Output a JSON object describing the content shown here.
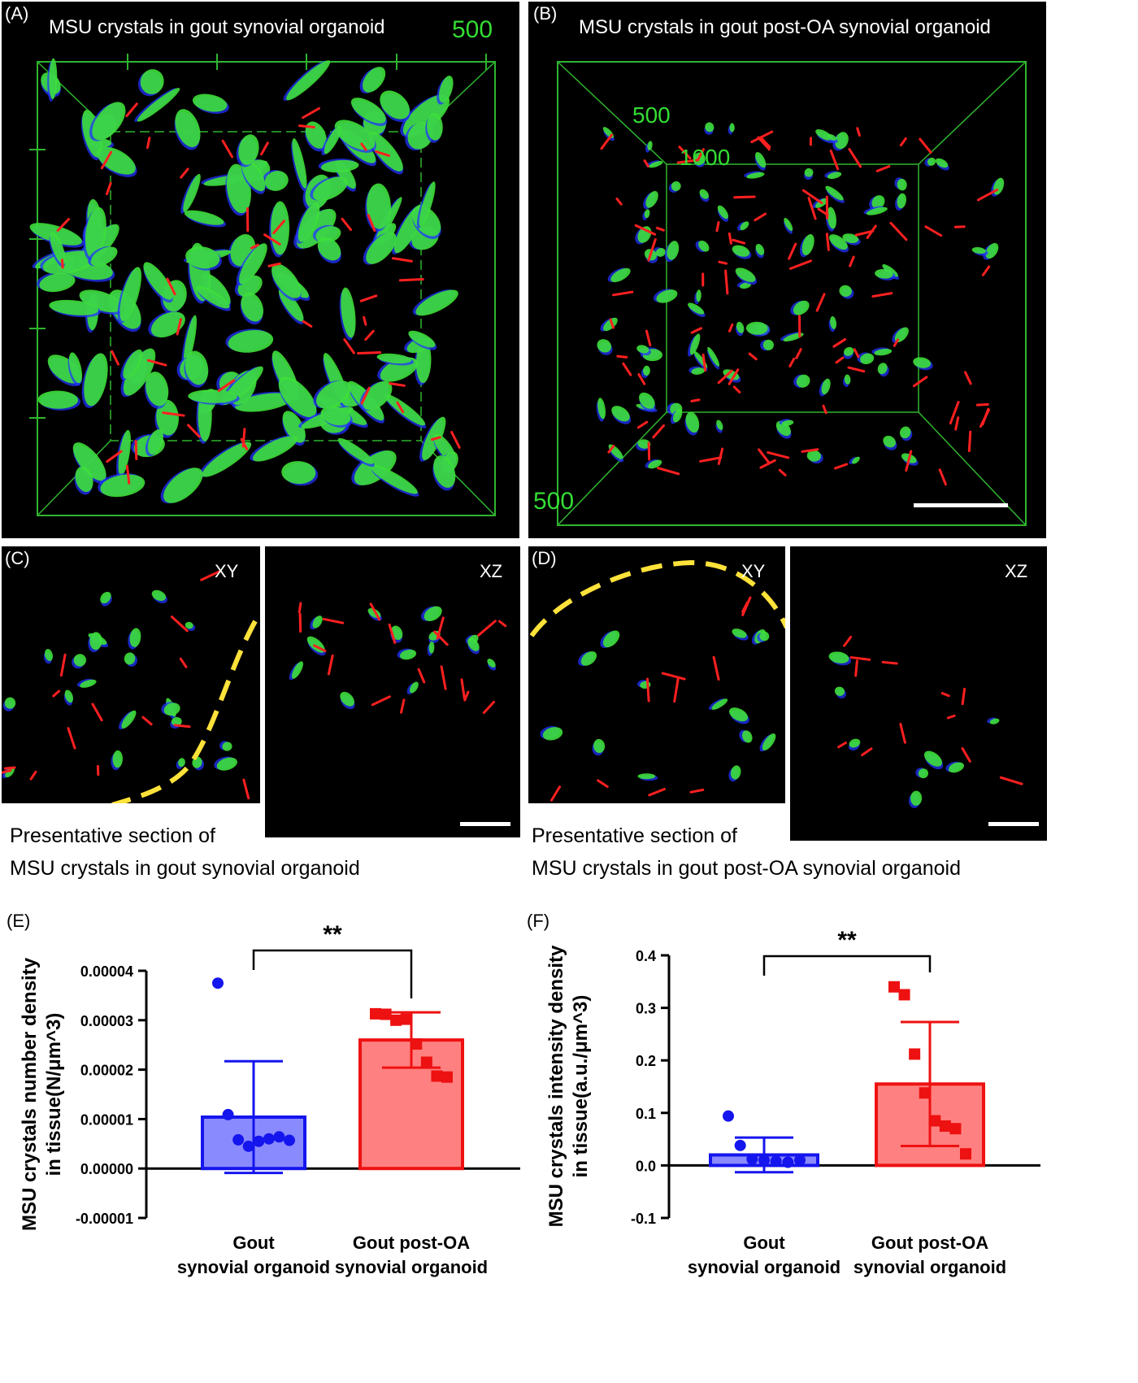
{
  "panels": {
    "A": {
      "letter": "(A)",
      "title": "MSU crystals in gout synovial organoid",
      "axis_label": "500"
    },
    "B": {
      "letter": "(B)",
      "title": "MSU crystals in gout post-OA synovial organoid",
      "axis_labels": [
        "500",
        "1000",
        "500"
      ]
    },
    "C": {
      "letter": "(C)",
      "plane_left": "XY",
      "plane_right": "XZ",
      "caption_line1": "Presentative section of",
      "caption_line2": "MSU crystals in gout synovial organoid"
    },
    "D": {
      "letter": "(D)",
      "plane_left": "XY",
      "plane_right": "XZ",
      "caption_line1": "Presentative section of",
      "caption_line2": "MSU crystals in gout post-OA synovial organoid"
    },
    "E": {
      "letter": "(E)"
    },
    "F": {
      "letter": "(F)"
    }
  },
  "chart_data": [
    {
      "type": "bar",
      "panel": "E",
      "ylabel_line1": "MSU crystals number density",
      "ylabel_line2": "in tissue(N/μm^3)",
      "categories_line1": [
        "Gout",
        "Gout post-OA"
      ],
      "categories_line2": [
        "synovial organoid",
        "synovial organoid"
      ],
      "ylim": [
        -1e-05,
        4e-05
      ],
      "yticks": [
        -1e-05,
        0,
        1e-05,
        2e-05,
        3e-05,
        4e-05
      ],
      "ytick_labels": [
        "-0.00001",
        "0.00000",
        "0.00001",
        "0.00002",
        "0.00003",
        "0.00004"
      ],
      "series": [
        {
          "mean": 1.04e-05,
          "sd": 1.13e-05,
          "points": [
            3.75e-05,
            1.09e-05,
            5.8e-06,
            4.5e-06,
            5.5e-06,
            6e-06,
            6.4e-06,
            5.7e-06
          ],
          "fill": "#8a8aff",
          "stroke": "#1515ee",
          "marker": "circle"
        },
        {
          "mean": 2.6e-05,
          "sd": 5.6e-06,
          "points": [
            3.13e-05,
            3.12e-05,
            3e-05,
            3.02e-05,
            2.52e-05,
            2.15e-05,
            1.87e-05,
            1.85e-05
          ],
          "fill": "#ff8080",
          "stroke": "#ee1111",
          "marker": "square"
        }
      ],
      "significance": "**"
    },
    {
      "type": "bar",
      "panel": "F",
      "ylabel_line1": "MSU crystals intensity density",
      "ylabel_line2": "in tissue(a.u./μm^3)",
      "categories_line1": [
        "Gout",
        "Gout post-OA"
      ],
      "categories_line2": [
        "synovial organoid",
        "synovial organoid"
      ],
      "ylim": [
        -0.1,
        0.4
      ],
      "yticks": [
        -0.1,
        0,
        0.1,
        0.2,
        0.3,
        0.4
      ],
      "ytick_labels": [
        "-0.1",
        "0.0",
        "0.1",
        "0.2",
        "0.3",
        "0.4"
      ],
      "series": [
        {
          "mean": 0.02,
          "sd": 0.033,
          "points": [
            0.094,
            0.038,
            0.012,
            0.01,
            0.008,
            0.006,
            0.01
          ],
          "fill": "#8a8aff",
          "stroke": "#1515ee",
          "marker": "circle"
        },
        {
          "mean": 0.155,
          "sd": 0.118,
          "points": [
            0.34,
            0.325,
            0.212,
            0.138,
            0.085,
            0.075,
            0.07,
            0.022
          ],
          "fill": "#ff8080",
          "stroke": "#ee1111",
          "marker": "square"
        }
      ],
      "significance": "**"
    }
  ]
}
